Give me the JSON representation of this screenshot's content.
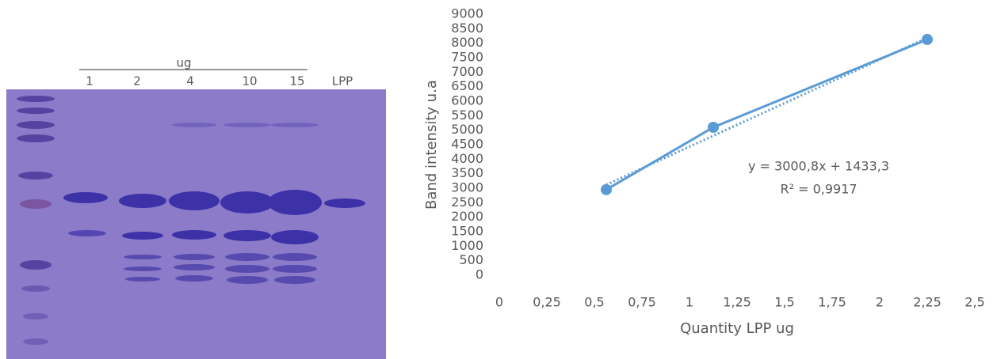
{
  "gel": {
    "header": "ug",
    "lanes": [
      "1",
      "2",
      "4",
      "10",
      "15",
      "LPP"
    ]
  },
  "chart_data": {
    "type": "scatter",
    "y_label": "Band intensity u.a",
    "x_label": "Quantity LPP ug",
    "series": [
      {
        "name": "Band intensity",
        "color": "#5b9bd5",
        "x": [
          0.5625,
          1.125,
          2.25
        ],
        "values": [
          2950,
          5100,
          8130
        ]
      }
    ],
    "trendline": {
      "slope": 3000.8,
      "intercept": 1433.3,
      "equation_label": "y = 3000,8x + 1433,3",
      "r2": 0.9917,
      "r2_label": "R² = 0,9917"
    },
    "xlim": [
      0,
      2.5
    ],
    "xticks": [
      0,
      {
        "value": 0.25,
        "label": "0,25"
      },
      {
        "value": 0.5,
        "label": "0,5"
      },
      {
        "value": 0.75,
        "label": "0,75"
      },
      1,
      {
        "value": 1.25,
        "label": "1,25"
      },
      {
        "value": 1.5,
        "label": "1,5"
      },
      {
        "value": 1.75,
        "label": "1,75"
      },
      2,
      {
        "value": 2.25,
        "label": "2,25"
      },
      {
        "value": 2.5,
        "label": "2,5"
      }
    ],
    "ylim": [
      0,
      9000
    ],
    "yticks": [
      0,
      500,
      1000,
      1500,
      2000,
      2500,
      3000,
      3500,
      4000,
      4500,
      5000,
      5500,
      6000,
      6500,
      7000,
      7500,
      8000,
      8500,
      9000
    ],
    "grid": false
  }
}
